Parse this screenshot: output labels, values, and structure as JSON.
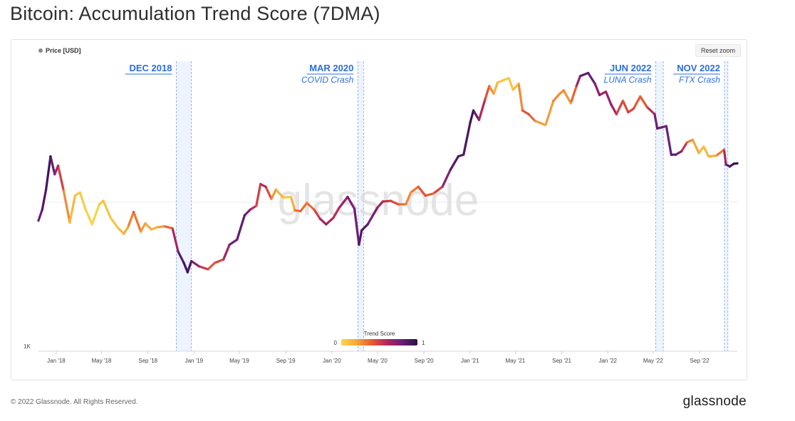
{
  "page": {
    "title": "Bitcoin: Accumulation Trend Score (7DMA)",
    "footer_copyright": "© 2022 Glassnode. All Rights Reserved.",
    "footer_brand": "glassnode"
  },
  "toolbar": {
    "reset_zoom_label": "Reset zoom"
  },
  "legend": {
    "series_label": "Price [USD]",
    "series_color": "#8a8a8a"
  },
  "watermark": "glassnode",
  "chart_data": {
    "type": "line",
    "title": "Bitcoin: Accumulation Trend Score (7DMA)",
    "series_name": "Price [USD]",
    "y_scale": "log",
    "ytick_labels": [
      "1K"
    ],
    "ytick_values": [
      1000
    ],
    "ylim": [
      1000,
      80000
    ],
    "x_date_range": [
      "2017-11-15",
      "2022-12-10"
    ],
    "xtick_labels": [
      "Jan '18",
      "May '18",
      "Sep '18",
      "Jan '19",
      "May '19",
      "Sep '19",
      "Jan '20",
      "May '20",
      "Sep '20",
      "Jan '21",
      "May '21",
      "Sep '21",
      "Jan '22",
      "May '22",
      "Sep '22"
    ],
    "xtick_dates": [
      "2018-01-01",
      "2018-05-01",
      "2018-09-01",
      "2019-01-01",
      "2019-05-01",
      "2019-09-01",
      "2020-01-01",
      "2020-05-01",
      "2020-09-01",
      "2021-01-01",
      "2021-05-01",
      "2021-09-01",
      "2022-01-01",
      "2022-05-01",
      "2022-09-01"
    ],
    "price_points": [
      [
        "2017-11-15",
        7200,
        0.75
      ],
      [
        "2017-11-25",
        8500,
        0.85
      ],
      [
        "2017-12-05",
        11500,
        0.9
      ],
      [
        "2017-12-17",
        19000,
        0.95
      ],
      [
        "2017-12-28",
        14500,
        0.7
      ],
      [
        "2018-01-06",
        16500,
        0.6
      ],
      [
        "2018-01-20",
        11500,
        0.4
      ],
      [
        "2018-02-06",
        7000,
        0.15
      ],
      [
        "2018-02-20",
        10500,
        0.1
      ],
      [
        "2018-03-05",
        11000,
        0.05
      ],
      [
        "2018-03-20",
        8500,
        0.05
      ],
      [
        "2018-04-06",
        6800,
        0.0
      ],
      [
        "2018-04-25",
        9200,
        0.05
      ],
      [
        "2018-05-06",
        9700,
        0.1
      ],
      [
        "2018-05-25",
        7500,
        0.05
      ],
      [
        "2018-06-15",
        6400,
        0.1
      ],
      [
        "2018-06-29",
        5900,
        0.15
      ],
      [
        "2018-07-10",
        6500,
        0.2
      ],
      [
        "2018-07-25",
        8200,
        0.4
      ],
      [
        "2018-08-13",
        6100,
        0.25
      ],
      [
        "2018-08-25",
        6900,
        0.2
      ],
      [
        "2018-09-10",
        6300,
        0.15
      ],
      [
        "2018-09-25",
        6500,
        0.15
      ],
      [
        "2018-10-15",
        6600,
        0.3
      ],
      [
        "2018-11-05",
        6400,
        0.45
      ],
      [
        "2018-11-20",
        4500,
        0.8
      ],
      [
        "2018-12-05",
        3800,
        0.9
      ],
      [
        "2018-12-15",
        3300,
        0.95
      ],
      [
        "2018-12-25",
        3900,
        0.85
      ],
      [
        "2019-01-15",
        3600,
        0.6
      ],
      [
        "2019-02-07",
        3450,
        0.45
      ],
      [
        "2019-02-25",
        3800,
        0.4
      ],
      [
        "2019-03-20",
        4000,
        0.55
      ],
      [
        "2019-04-05",
        5000,
        0.75
      ],
      [
        "2019-04-25",
        5400,
        0.8
      ],
      [
        "2019-05-15",
        7800,
        0.85
      ],
      [
        "2019-05-30",
        8500,
        0.7
      ],
      [
        "2019-06-15",
        9000,
        0.45
      ],
      [
        "2019-06-26",
        12500,
        0.55
      ],
      [
        "2019-07-10",
        12000,
        0.6
      ],
      [
        "2019-07-25",
        10000,
        0.3
      ],
      [
        "2019-08-06",
        11500,
        0.2
      ],
      [
        "2019-08-25",
        10200,
        0.1
      ],
      [
        "2019-09-15",
        10300,
        0.05
      ],
      [
        "2019-09-25",
        8400,
        0.3
      ],
      [
        "2019-10-10",
        8300,
        0.4
      ],
      [
        "2019-10-27",
        9400,
        0.3
      ],
      [
        "2019-11-15",
        8500,
        0.4
      ],
      [
        "2019-12-01",
        7400,
        0.6
      ],
      [
        "2019-12-17",
        6800,
        0.7
      ],
      [
        "2020-01-05",
        7500,
        0.55
      ],
      [
        "2020-01-20",
        8700,
        0.6
      ],
      [
        "2020-02-12",
        10300,
        0.75
      ],
      [
        "2020-03-01",
        8600,
        0.75
      ],
      [
        "2020-03-13",
        5000,
        0.85
      ],
      [
        "2020-03-20",
        6200,
        0.9
      ],
      [
        "2020-04-05",
        6800,
        0.85
      ],
      [
        "2020-04-30",
        8700,
        0.7
      ],
      [
        "2020-05-15",
        9600,
        0.6
      ],
      [
        "2020-06-05",
        9700,
        0.5
      ],
      [
        "2020-06-25",
        9200,
        0.4
      ],
      [
        "2020-07-15",
        9200,
        0.3
      ],
      [
        "2020-07-28",
        11000,
        0.25
      ],
      [
        "2020-08-17",
        12000,
        0.4
      ],
      [
        "2020-09-05",
        10500,
        0.45
      ],
      [
        "2020-09-25",
        10800,
        0.35
      ],
      [
        "2020-10-20",
        12000,
        0.6
      ],
      [
        "2020-11-10",
        15500,
        0.85
      ],
      [
        "2020-12-01",
        19000,
        0.9
      ],
      [
        "2020-12-15",
        19500,
        0.85
      ],
      [
        "2021-01-02",
        32000,
        0.95
      ],
      [
        "2021-01-10",
        38000,
        0.95
      ],
      [
        "2021-01-25",
        33000,
        0.7
      ],
      [
        "2021-02-10",
        45000,
        0.5
      ],
      [
        "2021-02-21",
        55000,
        0.35
      ],
      [
        "2021-03-05",
        49000,
        0.2
      ],
      [
        "2021-03-15",
        58000,
        0.1
      ],
      [
        "2021-04-14",
        62000,
        0.05
      ],
      [
        "2021-04-25",
        52000,
        0.1
      ],
      [
        "2021-05-10",
        57000,
        0.15
      ],
      [
        "2021-05-20",
        38000,
        0.4
      ],
      [
        "2021-06-05",
        36000,
        0.45
      ],
      [
        "2021-06-22",
        32500,
        0.3
      ],
      [
        "2021-07-20",
        30500,
        0.15
      ],
      [
        "2021-08-10",
        44000,
        0.3
      ],
      [
        "2021-08-25",
        48500,
        0.25
      ],
      [
        "2021-09-06",
        51500,
        0.3
      ],
      [
        "2021-09-25",
        42500,
        0.2
      ],
      [
        "2021-10-10",
        55000,
        0.55
      ],
      [
        "2021-10-20",
        64000,
        0.8
      ],
      [
        "2021-11-10",
        67000,
        0.85
      ],
      [
        "2021-11-28",
        57000,
        0.75
      ],
      [
        "2021-12-10",
        48000,
        0.7
      ],
      [
        "2021-12-27",
        50500,
        0.6
      ],
      [
        "2022-01-10",
        41500,
        0.75
      ],
      [
        "2022-01-24",
        36000,
        0.55
      ],
      [
        "2022-02-10",
        44000,
        0.4
      ],
      [
        "2022-02-24",
        37000,
        0.5
      ],
      [
        "2022-03-10",
        39000,
        0.45
      ],
      [
        "2022-03-28",
        47000,
        0.35
      ],
      [
        "2022-04-15",
        40000,
        0.45
      ],
      [
        "2022-05-05",
        36000,
        0.7
      ],
      [
        "2022-05-12",
        29000,
        0.85
      ],
      [
        "2022-05-25",
        29500,
        0.8
      ],
      [
        "2022-06-05",
        30000,
        0.75
      ],
      [
        "2022-06-18",
        19500,
        0.85
      ],
      [
        "2022-06-30",
        19500,
        0.8
      ],
      [
        "2022-07-15",
        20500,
        0.7
      ],
      [
        "2022-07-30",
        23500,
        0.35
      ],
      [
        "2022-08-14",
        24400,
        0.25
      ],
      [
        "2022-08-30",
        20000,
        0.15
      ],
      [
        "2022-09-12",
        22000,
        0.1
      ],
      [
        "2022-09-25",
        19000,
        0.15
      ],
      [
        "2022-10-15",
        19200,
        0.2
      ],
      [
        "2022-11-05",
        21000,
        0.45
      ],
      [
        "2022-11-10",
        16800,
        0.8
      ],
      [
        "2022-11-20",
        16300,
        0.9
      ],
      [
        "2022-12-01",
        17000,
        0.95
      ],
      [
        "2022-12-10",
        17100,
        0.95
      ]
    ],
    "annotations": [
      {
        "label": "DEC 2018",
        "sublabel": "",
        "start": "2018-11-15",
        "end": "2018-12-25",
        "label_align": "right"
      },
      {
        "label": "MAR 2020",
        "sublabel": "COVID Crash",
        "start": "2020-03-10",
        "end": "2020-03-25",
        "label_align": "right"
      },
      {
        "label": "JUN 2022",
        "sublabel": "LUNA Crash",
        "start": "2022-05-08",
        "end": "2022-05-28",
        "label_align": "right"
      },
      {
        "label": "NOV 2022",
        "sublabel": "FTX Crash",
        "start": "2022-11-06",
        "end": "2022-11-15",
        "label_align": "right"
      }
    ],
    "annotation_color": "#2b6de0",
    "annotation_band_color": "#eef4fd",
    "color_scale": {
      "title": "Trend Score",
      "min_label": "0",
      "max_label": "1",
      "stops": [
        "#f7d94c",
        "#f4a83a",
        "#e85a30",
        "#b2265f",
        "#6a1e78",
        "#2a0f4a"
      ]
    },
    "watermark_level": 9500
  }
}
